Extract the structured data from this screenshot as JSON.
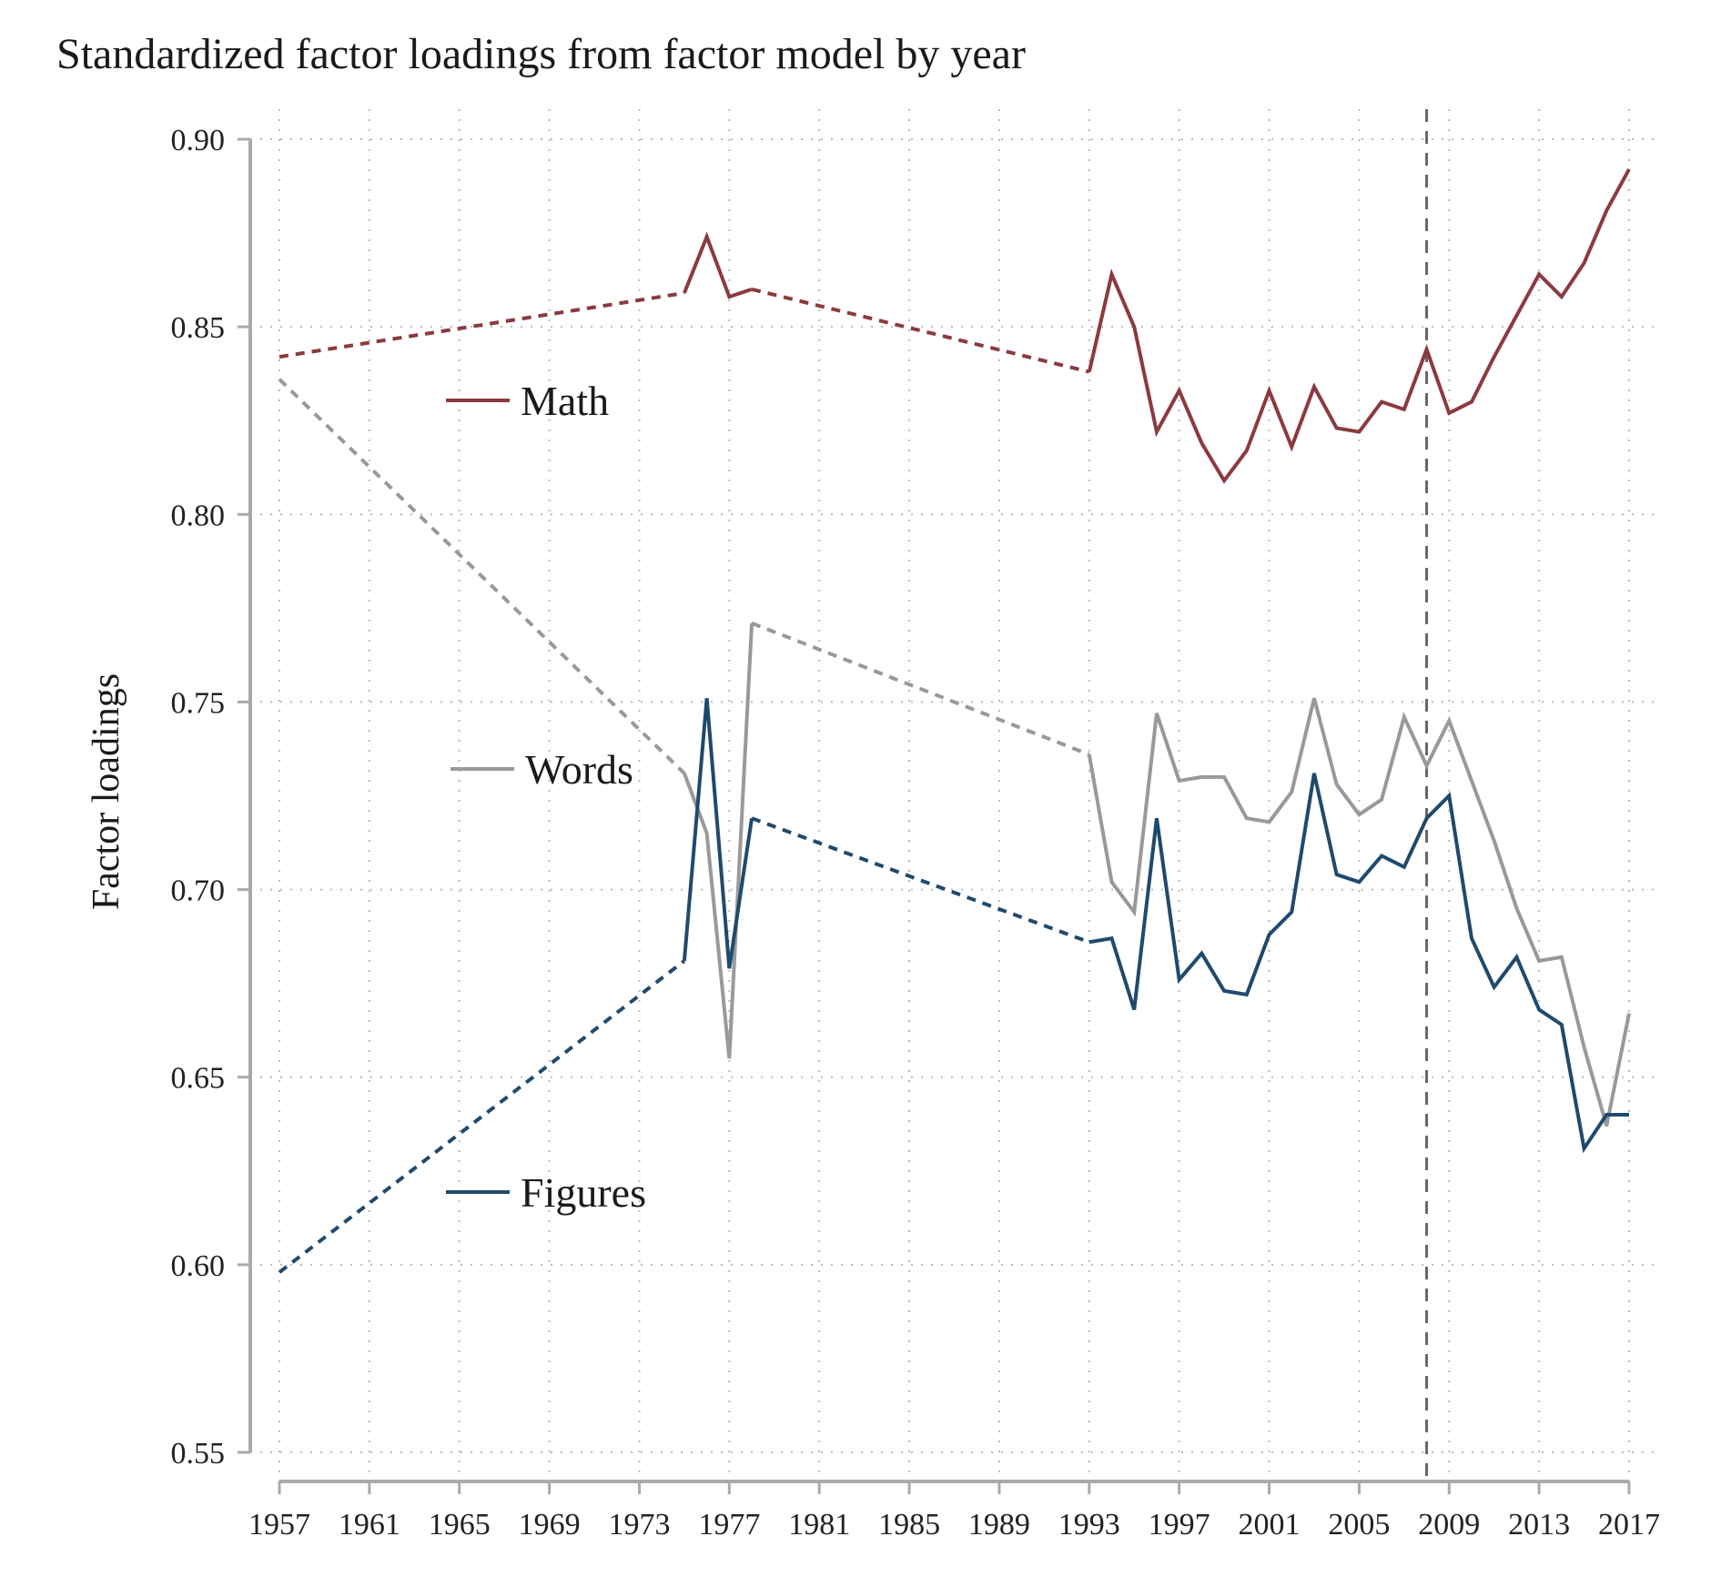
{
  "chart_data": {
    "type": "line",
    "title": "Standardized factor loadings from factor model by year",
    "xlabel": "",
    "ylabel": "Factor loadings",
    "xlim": [
      1957,
      2017
    ],
    "ylim": [
      0.55,
      0.9
    ],
    "x_ticks": [
      1957,
      1961,
      1965,
      1969,
      1973,
      1977,
      1981,
      1985,
      1989,
      1993,
      1997,
      2001,
      2005,
      2009,
      2013,
      2017
    ],
    "y_ticks": [
      0.55,
      0.6,
      0.65,
      0.7,
      0.75,
      0.8,
      0.85,
      0.9
    ],
    "y_tick_labels": [
      "0.55",
      "0.60",
      "0.65",
      "0.70",
      "0.75",
      "0.80",
      "0.85",
      "0.90"
    ],
    "grid": "dotted",
    "reference_line": {
      "x": 2008,
      "style": "dashed"
    },
    "series": [
      {
        "name": "Math",
        "color": "#8b3a3f",
        "x": [
          1957,
          1975,
          1976,
          1977,
          1978,
          1993,
          1994,
          1995,
          1996,
          1997,
          1998,
          1999,
          2000,
          2001,
          2002,
          2003,
          2004,
          2005,
          2006,
          2007,
          2008,
          2009,
          2010,
          2011,
          2012,
          2013,
          2014,
          2015,
          2016,
          2017
        ],
        "y": [
          0.842,
          0.859,
          0.874,
          0.858,
          0.86,
          0.838,
          0.864,
          0.85,
          0.822,
          0.833,
          0.819,
          0.809,
          0.817,
          0.833,
          0.818,
          0.834,
          0.823,
          0.822,
          0.83,
          0.828,
          0.844,
          0.827,
          0.83,
          0.842,
          0.853,
          0.864,
          0.858,
          0.867,
          0.881,
          0.892
        ],
        "dashed_gaps": [
          [
            1957,
            1975
          ],
          [
            1978,
            1993
          ]
        ]
      },
      {
        "name": "Words",
        "color": "#999999",
        "x": [
          1957,
          1975,
          1976,
          1977,
          1978,
          1993,
          1994,
          1995,
          1996,
          1997,
          1998,
          1999,
          2000,
          2001,
          2002,
          2003,
          2004,
          2005,
          2006,
          2007,
          2008,
          2009,
          2010,
          2011,
          2012,
          2013,
          2014,
          2015,
          2016,
          2017
        ],
        "y": [
          0.836,
          0.731,
          0.715,
          0.655,
          0.771,
          0.736,
          0.702,
          0.694,
          0.747,
          0.729,
          0.73,
          0.73,
          0.719,
          0.718,
          0.726,
          0.751,
          0.728,
          0.72,
          0.724,
          0.746,
          0.733,
          0.745,
          0.729,
          0.713,
          0.695,
          0.681,
          0.682,
          0.658,
          0.637,
          0.667
        ],
        "dashed_gaps": [
          [
            1957,
            1975
          ],
          [
            1978,
            1993
          ]
        ]
      },
      {
        "name": "Figures",
        "color": "#1f4a6e",
        "x": [
          1957,
          1975,
          1976,
          1977,
          1978,
          1993,
          1994,
          1995,
          1996,
          1997,
          1998,
          1999,
          2000,
          2001,
          2002,
          2003,
          2004,
          2005,
          2006,
          2007,
          2008,
          2009,
          2010,
          2011,
          2012,
          2013,
          2014,
          2015,
          2016,
          2017
        ],
        "y": [
          0.598,
          0.681,
          0.751,
          0.679,
          0.719,
          0.686,
          0.687,
          0.668,
          0.719,
          0.676,
          0.683,
          0.673,
          0.672,
          0.688,
          0.694,
          0.731,
          0.704,
          0.702,
          0.709,
          0.706,
          0.719,
          0.725,
          0.687,
          0.674,
          0.682,
          0.668,
          0.664,
          0.631,
          0.64,
          0.64
        ],
        "dashed_gaps": [
          [
            1957,
            1975
          ],
          [
            1978,
            1993
          ]
        ]
      }
    ],
    "legend": {
      "placement": "inline-left",
      "entries": [
        "Math",
        "Words",
        "Figures"
      ]
    },
    "axis_color": "#aaaaaa",
    "grid_color": "#bbbbbb",
    "reference_line_color": "#666666"
  }
}
